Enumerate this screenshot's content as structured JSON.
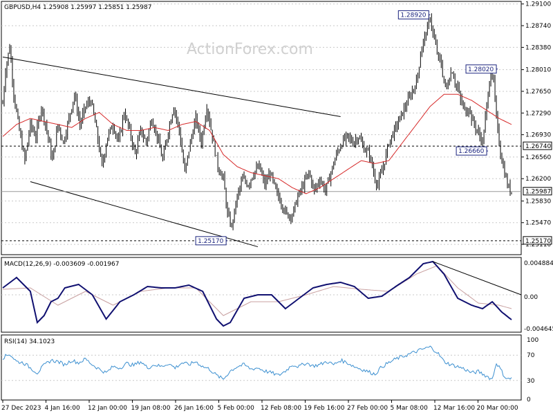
{
  "chart_data": {
    "type": "candlestick",
    "symbol_header": "GBPUSD,H4  1.25908 1.25997 1.25851 1.25987",
    "watermark": "ActionForex.com",
    "price_axis_ticks": [
      "1.29100",
      "1.28740",
      "1.28380",
      "1.28010",
      "1.27650",
      "1.27290",
      "1.26930",
      "1.26560",
      "1.26200",
      "1.25830",
      "1.25470",
      "1.25110"
    ],
    "price_range": [
      1.2495,
      1.2912
    ],
    "current_price_label": "1.25987",
    "current_price": 1.25987,
    "support_level_label": "1.26740",
    "support_level": 1.2674,
    "low_level_label": "1.25170",
    "low_level": 1.2517,
    "annotations": [
      {
        "text": "1.28920",
        "price": 1.2892,
        "date": "2024-03-08 04:00"
      },
      {
        "text": "1.28020",
        "price": 1.2802,
        "date": "2024-03-20 16:00"
      },
      {
        "text": "1.26660",
        "price": 1.2666,
        "date": "2024-03-20 00:00"
      },
      {
        "text": "1.25170",
        "price": 1.2517,
        "date": "2024-02-05 16:00"
      }
    ],
    "x_labels": [
      "27 Dec 2023",
      "4 Jan 16:00",
      "12 Jan 00:00",
      "19 Jan 08:00",
      "26 Jan 16:00",
      "5 Feb 00:00",
      "12 Feb 08:00",
      "19 Feb 16:00",
      "27 Feb 00:00",
      "5 Mar 08:00",
      "12 Mar 16:00",
      "20 Mar 00:00"
    ],
    "price_path": [
      [
        0,
        1.2745
      ],
      [
        2,
        1.28
      ],
      [
        5,
        1.284
      ],
      [
        8,
        1.276
      ],
      [
        12,
        1.27
      ],
      [
        16,
        1.265
      ],
      [
        20,
        1.271
      ],
      [
        24,
        1.269
      ],
      [
        28,
        1.274
      ],
      [
        32,
        1.27
      ],
      [
        36,
        1.265
      ],
      [
        40,
        1.271
      ],
      [
        44,
        1.268
      ],
      [
        48,
        1.272
      ],
      [
        52,
        1.276
      ],
      [
        56,
        1.271
      ],
      [
        60,
        1.274
      ],
      [
        64,
        1.275
      ],
      [
        68,
        1.27
      ],
      [
        72,
        1.264
      ],
      [
        76,
        1.269
      ],
      [
        80,
        1.271
      ],
      [
        84,
        1.268
      ],
      [
        88,
        1.273
      ],
      [
        92,
        1.27
      ],
      [
        96,
        1.266
      ],
      [
        100,
        1.27
      ],
      [
        104,
        1.268
      ],
      [
        108,
        1.272
      ],
      [
        112,
        1.269
      ],
      [
        116,
        1.265
      ],
      [
        120,
        1.27
      ],
      [
        124,
        1.274
      ],
      [
        128,
        1.27
      ],
      [
        132,
        1.263
      ],
      [
        136,
        1.268
      ],
      [
        140,
        1.272
      ],
      [
        144,
        1.268
      ],
      [
        148,
        1.274
      ],
      [
        152,
        1.269
      ],
      [
        156,
        1.264
      ],
      [
        160,
        1.262
      ],
      [
        163,
        1.256
      ],
      [
        166,
        1.254
      ],
      [
        170,
        1.259
      ],
      [
        174,
        1.262
      ],
      [
        178,
        1.261
      ],
      [
        182,
        1.263
      ],
      [
        186,
        1.264
      ],
      [
        190,
        1.261
      ],
      [
        194,
        1.263
      ],
      [
        198,
        1.26
      ],
      [
        202,
        1.258
      ],
      [
        206,
        1.256
      ],
      [
        210,
        1.256
      ],
      [
        214,
        1.259
      ],
      [
        218,
        1.261
      ],
      [
        222,
        1.263
      ],
      [
        226,
        1.26
      ],
      [
        230,
        1.262
      ],
      [
        234,
        1.26
      ],
      [
        238,
        1.263
      ],
      [
        242,
        1.266
      ],
      [
        246,
        1.268
      ],
      [
        250,
        1.269
      ],
      [
        254,
        1.268
      ],
      [
        258,
        1.269
      ],
      [
        262,
        1.267
      ],
      [
        266,
        1.266
      ],
      [
        268,
        1.264
      ],
      [
        270,
        1.262
      ],
      [
        272,
        1.261
      ],
      [
        276,
        1.264
      ],
      [
        280,
        1.268
      ],
      [
        284,
        1.27
      ],
      [
        288,
        1.272
      ],
      [
        292,
        1.274
      ],
      [
        296,
        1.276
      ],
      [
        300,
        1.278
      ],
      [
        304,
        1.284
      ],
      [
        308,
        1.287
      ],
      [
        310,
        1.289
      ],
      [
        312,
        1.286
      ],
      [
        314,
        1.284
      ],
      [
        316,
        1.282
      ],
      [
        318,
        1.281
      ],
      [
        320,
        1.278
      ],
      [
        322,
        1.277
      ],
      [
        324,
        1.279
      ],
      [
        326,
        1.28
      ],
      [
        328,
        1.278
      ],
      [
        330,
        1.277
      ],
      [
        332,
        1.275
      ],
      [
        334,
        1.274
      ],
      [
        336,
        1.273
      ],
      [
        338,
        1.274
      ],
      [
        340,
        1.272
      ],
      [
        342,
        1.271
      ],
      [
        344,
        1.27
      ],
      [
        346,
        1.269
      ],
      [
        348,
        1.268
      ],
      [
        350,
        1.272
      ],
      [
        352,
        1.276
      ],
      [
        354,
        1.28
      ],
      [
        356,
        1.278
      ],
      [
        358,
        1.272
      ],
      [
        360,
        1.268
      ],
      [
        362,
        1.265
      ],
      [
        364,
        1.263
      ],
      [
        366,
        1.261
      ],
      [
        368,
        1.26
      ],
      [
        369,
        1.2599
      ]
    ],
    "moving_average_path": [
      [
        0,
        1.269
      ],
      [
        10,
        1.271
      ],
      [
        20,
        1.272
      ],
      [
        30,
        1.2715
      ],
      [
        40,
        1.271
      ],
      [
        50,
        1.2705
      ],
      [
        60,
        1.272
      ],
      [
        70,
        1.273
      ],
      [
        80,
        1.271
      ],
      [
        90,
        1.27
      ],
      [
        100,
        1.27
      ],
      [
        110,
        1.2705
      ],
      [
        120,
        1.27
      ],
      [
        130,
        1.271
      ],
      [
        140,
        1.2715
      ],
      [
        150,
        1.27
      ],
      [
        160,
        1.266
      ],
      [
        170,
        1.264
      ],
      [
        180,
        1.263
      ],
      [
        190,
        1.2625
      ],
      [
        200,
        1.262
      ],
      [
        210,
        1.2605
      ],
      [
        220,
        1.2595
      ],
      [
        230,
        1.2605
      ],
      [
        240,
        1.262
      ],
      [
        250,
        1.2635
      ],
      [
        260,
        1.265
      ],
      [
        270,
        1.2645
      ],
      [
        280,
        1.265
      ],
      [
        290,
        1.268
      ],
      [
        300,
        1.271
      ],
      [
        310,
        1.274
      ],
      [
        320,
        1.276
      ],
      [
        330,
        1.276
      ],
      [
        340,
        1.275
      ],
      [
        350,
        1.2735
      ],
      [
        360,
        1.272
      ],
      [
        369,
        1.271
      ]
    ],
    "trendlines": [
      {
        "from": [
          0,
          1.2822
        ],
        "to": [
          245,
          1.2723
        ]
      },
      {
        "from": [
          20,
          1.2615
        ],
        "to": [
          185,
          1.2507
        ]
      }
    ],
    "macd": {
      "label": "MACD(12,26,9) -0.003609 -0.001967",
      "ticks": [
        "0.004884",
        "0.00",
        "-0.004645"
      ],
      "range": [
        -0.0052,
        0.0052
      ],
      "macd_path": [
        [
          0,
          0.001
        ],
        [
          10,
          0.0025
        ],
        [
          20,
          0.0005
        ],
        [
          25,
          -0.004
        ],
        [
          30,
          -0.003
        ],
        [
          35,
          -0.001
        ],
        [
          40,
          -0.0005
        ],
        [
          45,
          0.001
        ],
        [
          55,
          0.0015
        ],
        [
          65,
          0.0
        ],
        [
          75,
          -0.0035
        ],
        [
          85,
          -0.001
        ],
        [
          95,
          0.0
        ],
        [
          105,
          0.0012
        ],
        [
          115,
          0.001
        ],
        [
          125,
          0.001
        ],
        [
          135,
          0.0014
        ],
        [
          145,
          0.0005
        ],
        [
          155,
          -0.0035
        ],
        [
          160,
          -0.0045
        ],
        [
          165,
          -0.004
        ],
        [
          175,
          -0.0005
        ],
        [
          185,
          0.0
        ],
        [
          195,
          0.0
        ],
        [
          205,
          -0.002
        ],
        [
          215,
          -0.0005
        ],
        [
          225,
          0.001
        ],
        [
          235,
          0.0015
        ],
        [
          245,
          0.0018
        ],
        [
          255,
          0.0012
        ],
        [
          265,
          -0.0005
        ],
        [
          275,
          -0.0002
        ],
        [
          285,
          0.0012
        ],
        [
          295,
          0.0025
        ],
        [
          305,
          0.0045
        ],
        [
          312,
          0.0048
        ],
        [
          320,
          0.003
        ],
        [
          330,
          -0.0005
        ],
        [
          340,
          -0.0015
        ],
        [
          348,
          -0.002
        ],
        [
          355,
          -0.001
        ],
        [
          362,
          -0.0025
        ],
        [
          369,
          -0.0036
        ]
      ],
      "signal_path": [
        [
          0,
          0.0008
        ],
        [
          20,
          0.001
        ],
        [
          40,
          -0.0015
        ],
        [
          60,
          0.0005
        ],
        [
          80,
          -0.0015
        ],
        [
          100,
          0.0005
        ],
        [
          120,
          0.001
        ],
        [
          140,
          0.001
        ],
        [
          160,
          -0.003
        ],
        [
          180,
          -0.001
        ],
        [
          200,
          -0.001
        ],
        [
          220,
          0.0
        ],
        [
          240,
          0.0012
        ],
        [
          260,
          0.0008
        ],
        [
          280,
          0.0005
        ],
        [
          300,
          0.003
        ],
        [
          315,
          0.0042
        ],
        [
          330,
          0.001
        ],
        [
          345,
          -0.0012
        ],
        [
          360,
          -0.0015
        ],
        [
          369,
          -0.002
        ]
      ],
      "trendline": {
        "from": [
          312,
          0.0048
        ],
        "to": [
          369,
          0.0
        ]
      }
    },
    "rsi": {
      "label": "RSI(14) 34.1023",
      "ticks": [
        "100",
        "70",
        "30",
        "0"
      ],
      "levels": [
        70,
        30
      ],
      "path": [
        [
          0,
          66
        ],
        [
          5,
          72
        ],
        [
          10,
          60
        ],
        [
          15,
          58
        ],
        [
          20,
          50
        ],
        [
          25,
          42
        ],
        [
          30,
          54
        ],
        [
          35,
          62
        ],
        [
          40,
          60
        ],
        [
          45,
          55
        ],
        [
          50,
          62
        ],
        [
          55,
          58
        ],
        [
          60,
          64
        ],
        [
          65,
          55
        ],
        [
          70,
          48
        ],
        [
          75,
          42
        ],
        [
          80,
          52
        ],
        [
          85,
          50
        ],
        [
          90,
          57
        ],
        [
          95,
          54
        ],
        [
          100,
          60
        ],
        [
          105,
          50
        ],
        [
          110,
          55
        ],
        [
          115,
          52
        ],
        [
          120,
          57
        ],
        [
          125,
          50
        ],
        [
          130,
          58
        ],
        [
          135,
          55
        ],
        [
          140,
          60
        ],
        [
          145,
          52
        ],
        [
          150,
          48
        ],
        [
          155,
          38
        ],
        [
          160,
          32
        ],
        [
          165,
          45
        ],
        [
          170,
          52
        ],
        [
          175,
          55
        ],
        [
          180,
          48
        ],
        [
          185,
          50
        ],
        [
          190,
          45
        ],
        [
          195,
          42
        ],
        [
          200,
          38
        ],
        [
          205,
          45
        ],
        [
          210,
          55
        ],
        [
          215,
          52
        ],
        [
          220,
          58
        ],
        [
          225,
          53
        ],
        [
          230,
          55
        ],
        [
          235,
          60
        ],
        [
          240,
          55
        ],
        [
          245,
          62
        ],
        [
          250,
          58
        ],
        [
          255,
          52
        ],
        [
          260,
          48
        ],
        [
          265,
          44
        ],
        [
          270,
          40
        ],
        [
          275,
          52
        ],
        [
          280,
          58
        ],
        [
          285,
          64
        ],
        [
          290,
          68
        ],
        [
          295,
          72
        ],
        [
          300,
          76
        ],
        [
          305,
          80
        ],
        [
          310,
          83
        ],
        [
          315,
          75
        ],
        [
          320,
          60
        ],
        [
          325,
          55
        ],
        [
          330,
          52
        ],
        [
          335,
          48
        ],
        [
          340,
          42
        ],
        [
          345,
          44
        ],
        [
          350,
          38
        ],
        [
          355,
          32
        ],
        [
          358,
          58
        ],
        [
          361,
          48
        ],
        [
          364,
          36
        ],
        [
          367,
          32
        ],
        [
          369,
          34
        ]
      ]
    }
  }
}
